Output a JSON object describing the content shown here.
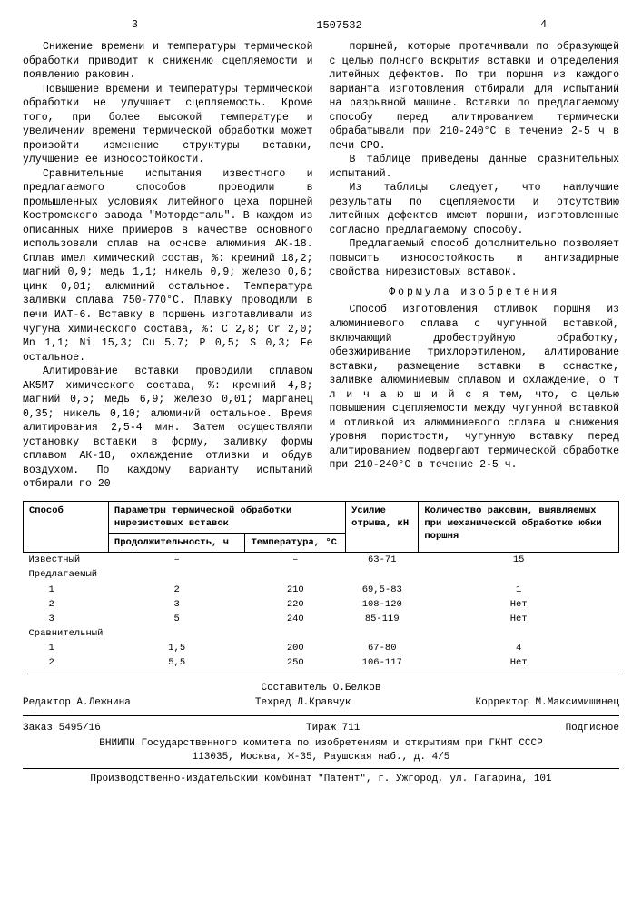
{
  "header": {
    "page_left": "3",
    "patent": "1507532",
    "page_right": "4"
  },
  "left_paras": [
    "Снижение времени и температуры термической обработки приводит к снижению сцепляемости и появлению раковин.",
    "Повышение времени и температуры термической обработки не улучшает сцепляемость. Кроме того, при более высокой температуре и увеличении времени термической обработки может произойти изменение структуры вставки, улучшение ее износостойкости.",
    "Сравнительные испытания известного и предлагаемого способов проводили в промышленных условиях литейного цеха поршней Костромского завода \"Мотордеталь\". В каждом из описанных ниже примеров в качестве основного использовали сплав на основе алюминия АК-18. Сплав имел химический состав, %: кремний 18,2; магний 0,9; медь 1,1; никель 0,9; железо 0,6; цинк 0,01; алюминий остальное. Температура заливки сплава 750-770°С. Плавку проводили в печи ИАТ-6. Вставку в поршень изготавливали из чугуна химического состава, %: C 2,8; Cr 2,0; Mn 1,1; Ni 15,3; Cu 5,7; P 0,5; S 0,3; Fe остальное.",
    "Алитирование вставки проводили сплавом АК5М7 химического состава, %: кремний 4,8; магний 0,5; медь 6,9; железо 0,01; марганец 0,35; никель 0,10; алюминий остальное. Время алитирования 2,5-4 мин. Затем осуществляли установку вставки в форму, заливку формы сплавом АК-18, охлаждение отливки и обдув воздухом. По каждому варианту испытаний отбирали по 20"
  ],
  "right_paras": [
    "поршней, которые протачивали по образующей с целью полного вскрытия вставки и определения литейных дефектов. По три поршня из каждого варианта изготовления отбирали для испытаний на разрывной машине. Вставки по предлагаемому способу перед алитированием термически обрабатывали при 210-240°С в течение 2-5 ч в печи СРО.",
    "В таблице приведены данные сравнительных испытаний.",
    "Из таблицы следует, что наилучшие результаты по сцепляемости и отсутствию литейных дефектов имеют поршни, изготовленные согласно предлагаемому способу.",
    "Предлагаемый способ дополнительно позволяет повысить износостойкость и антизадирные свойства нирезистовых вставок."
  ],
  "formula_title": "Формула изобретения",
  "formula_text": "Способ изготовления отливок поршня из алюминиевого сплава с чугунной вставкой, включающий дробеструйную обработку, обезжиривание трихлорэтиленом, алитирование вставки, размещение вставки в оснастке, заливке алюминиевым сплавом и охлаждение, о т л и ч а ю щ и й с я тем, что, с целью повышения сцепляемости между чугунной вставкой и отливкой из алюминиевого сплава и снижения уровня пористости, чугунную вставку перед алитированием подвергают термической обработке при 210-240°С в течение 2-5 ч.",
  "table": {
    "cols": [
      "Способ",
      "Параметры термической обработки нирезистовых вставок",
      "Усилие отрыва, кН",
      "Количество раковин, выявляемых при механической обработке юбки поршня"
    ],
    "subcols": [
      "Продолжительность, ч",
      "Температура, °С"
    ],
    "rows": [
      {
        "name": "Известный",
        "dur": "–",
        "temp": "–",
        "force": "63-71",
        "rak": "15"
      },
      {
        "name": "Предлагаемый",
        "dur": "",
        "temp": "",
        "force": "",
        "rak": ""
      },
      {
        "name": "1",
        "dur": "2",
        "temp": "210",
        "force": "69,5-83",
        "rak": "1",
        "indent": true
      },
      {
        "name": "2",
        "dur": "3",
        "temp": "220",
        "force": "108-120",
        "rak": "Нет",
        "indent": true
      },
      {
        "name": "3",
        "dur": "5",
        "temp": "240",
        "force": "85-119",
        "rak": "Нет",
        "indent": true
      },
      {
        "name": "Сравнительный",
        "dur": "",
        "temp": "",
        "force": "",
        "rak": ""
      },
      {
        "name": "1",
        "dur": "1,5",
        "temp": "200",
        "force": "67-80",
        "rak": "4",
        "indent": true
      },
      {
        "name": "2",
        "dur": "5,5",
        "temp": "250",
        "force": "106-117",
        "rak": "Нет",
        "indent": true
      }
    ]
  },
  "footer": {
    "line1": {
      "a": "Составитель О.Белков"
    },
    "line2": {
      "a": "Редактор А.Лежнина",
      "b": "Техред Л.Кравчук",
      "c": "Корректор М.Максимишинец"
    },
    "line3": {
      "a": "Заказ 5495/16",
      "b": "Тираж 711",
      "c": "Подписное"
    },
    "line4": "ВНИИПИ Государственного комитета по изобретениям и открытиям при ГКНТ СССР",
    "line5": "113035, Москва, Ж-35, Раушская наб., д. 4/5",
    "line6": "Производственно-издательский комбинат \"Патент\", г. Ужгород, ул. Гагарина, 101"
  }
}
